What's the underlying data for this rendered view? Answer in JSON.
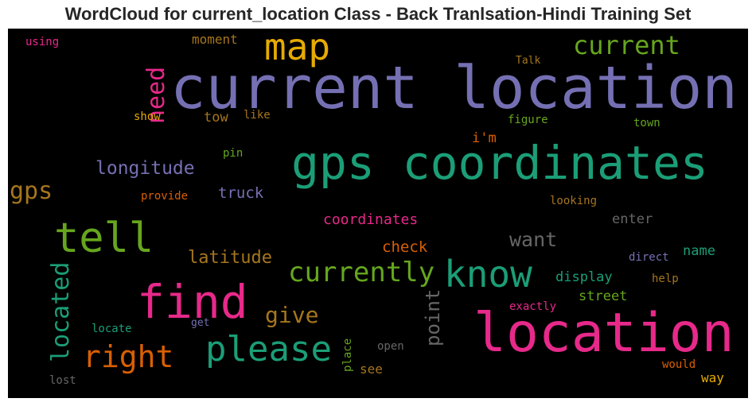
{
  "title": "WordCloud for current_location Class - Back Tranlsation-Hindi Training Set",
  "words": [
    {
      "text": "current location",
      "color": "#7570b3"
    },
    {
      "text": "gps coordinates",
      "color": "#1b9e77"
    },
    {
      "text": "location",
      "color": "#e7298a"
    },
    {
      "text": "find",
      "color": "#e7298a"
    },
    {
      "text": "tell",
      "color": "#66a61e"
    },
    {
      "text": "know",
      "color": "#1b9e77"
    },
    {
      "text": "please",
      "color": "#1b9e77"
    },
    {
      "text": "map",
      "color": "#e6ab02"
    },
    {
      "text": "right",
      "color": "#d95f02"
    },
    {
      "text": "current",
      "color": "#66a61e"
    },
    {
      "text": "currently",
      "color": "#66a61e"
    },
    {
      "text": "need",
      "color": "#e7298a"
    },
    {
      "text": "located",
      "color": "#1b9e77"
    },
    {
      "text": "gps",
      "color": "#a6761d"
    },
    {
      "text": "longitude",
      "color": "#7570b3"
    },
    {
      "text": "give",
      "color": "#a6761d"
    },
    {
      "text": "want",
      "color": "#666666"
    },
    {
      "text": "latitude",
      "color": "#a6761d"
    },
    {
      "text": "point",
      "color": "#666666"
    },
    {
      "text": "coordinates",
      "color": "#e7298a"
    },
    {
      "text": "truck",
      "color": "#7570b3"
    },
    {
      "text": "check",
      "color": "#d95f02"
    },
    {
      "text": "display",
      "color": "#1b9e77"
    },
    {
      "text": "street",
      "color": "#66a61e"
    },
    {
      "text": "name",
      "color": "#1b9e77"
    },
    {
      "text": "enter",
      "color": "#666666"
    },
    {
      "text": "moment",
      "color": "#a6761d"
    },
    {
      "text": "tow",
      "color": "#a6761d"
    },
    {
      "text": "i'm",
      "color": "#d95f02"
    },
    {
      "text": "see",
      "color": "#a6761d"
    },
    {
      "text": "using",
      "color": "#e7298a"
    },
    {
      "text": "show",
      "color": "#e6ab02"
    },
    {
      "text": "like",
      "color": "#a6761d"
    },
    {
      "text": "figure",
      "color": "#66a61e"
    },
    {
      "text": "town",
      "color": "#66a61e"
    },
    {
      "text": "Talk",
      "color": "#a6761d"
    },
    {
      "text": "pin",
      "color": "#66a61e"
    },
    {
      "text": "provide",
      "color": "#d95f02"
    },
    {
      "text": "looking",
      "color": "#a6761d"
    },
    {
      "text": "direct",
      "color": "#7570b3"
    },
    {
      "text": "help",
      "color": "#a6761d"
    },
    {
      "text": "exactly",
      "color": "#e7298a"
    },
    {
      "text": "locate",
      "color": "#1b9e77"
    },
    {
      "text": "get",
      "color": "#7570b3"
    },
    {
      "text": "open",
      "color": "#666666"
    },
    {
      "text": "place",
      "color": "#66a61e"
    },
    {
      "text": "would",
      "color": "#d95f02"
    },
    {
      "text": "way",
      "color": "#e6ab02"
    },
    {
      "text": "lost",
      "color": "#666666"
    }
  ]
}
